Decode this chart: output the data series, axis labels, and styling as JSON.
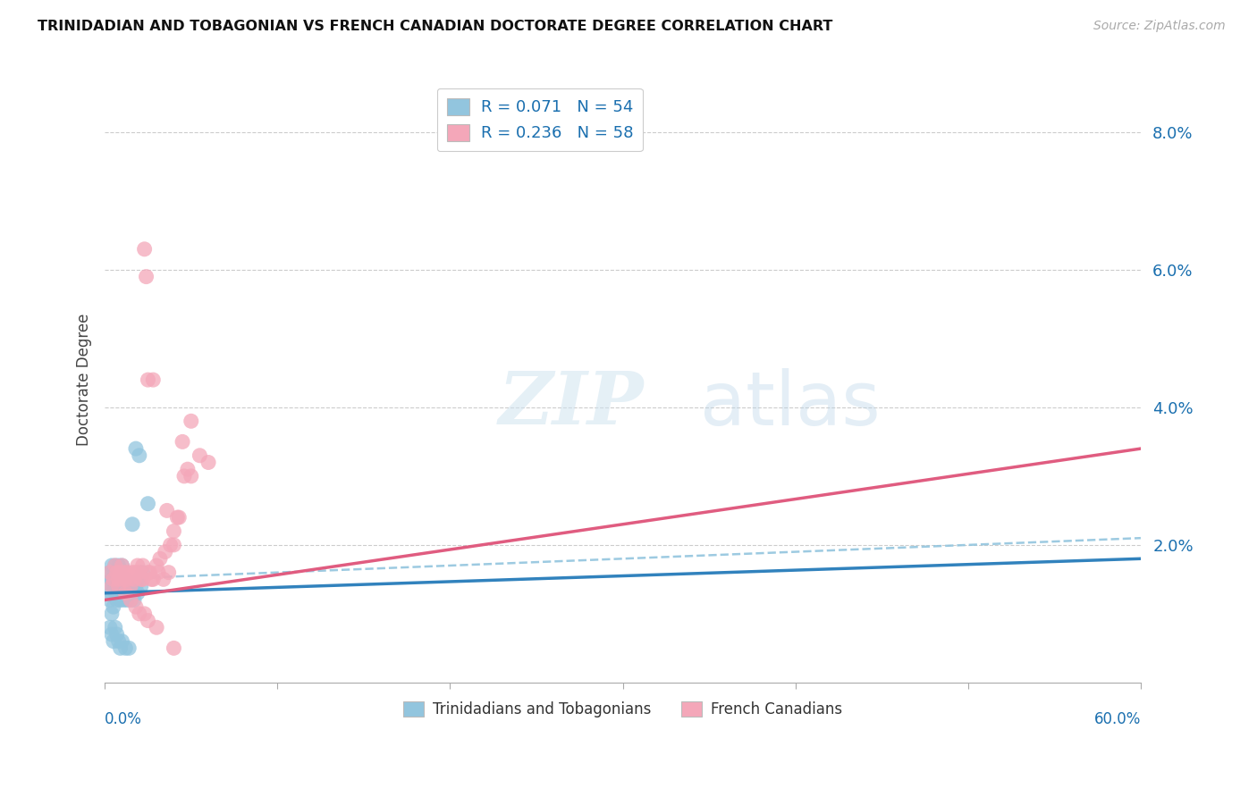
{
  "title": "TRINIDADIAN AND TOBAGONIAN VS FRENCH CANADIAN DOCTORATE DEGREE CORRELATION CHART",
  "source": "Source: ZipAtlas.com",
  "ylabel": "Doctorate Degree",
  "color_blue": "#92c5de",
  "color_pink": "#f4a7b9",
  "color_blue_line": "#3182bd",
  "color_pink_line": "#e05c80",
  "color_dashed": "#92c5de",
  "legend_label1": "Trinidadians and Tobagonians",
  "legend_label2": "French Canadians",
  "background_color": "#ffffff",
  "grid_color": "#cccccc",
  "title_color": "#111111",
  "tick_label_color": "#1a6faf",
  "xmin": 0.0,
  "xmax": 0.6,
  "ymin": 0.0,
  "ymax": 0.088,
  "yticks": [
    0.0,
    0.02,
    0.04,
    0.06,
    0.08
  ],
  "ytick_labels": [
    "",
    "2.0%",
    "4.0%",
    "6.0%",
    "8.0%"
  ],
  "xtick_positions": [
    0.0,
    0.1,
    0.2,
    0.3,
    0.4,
    0.5,
    0.6
  ],
  "blue_x": [
    0.002,
    0.003,
    0.003,
    0.004,
    0.004,
    0.004,
    0.004,
    0.005,
    0.005,
    0.005,
    0.006,
    0.006,
    0.006,
    0.007,
    0.007,
    0.007,
    0.008,
    0.008,
    0.008,
    0.009,
    0.009,
    0.01,
    0.01,
    0.01,
    0.011,
    0.011,
    0.012,
    0.012,
    0.013,
    0.013,
    0.014,
    0.015,
    0.015,
    0.016,
    0.017,
    0.018,
    0.019,
    0.02,
    0.021,
    0.022,
    0.003,
    0.004,
    0.005,
    0.006,
    0.007,
    0.008,
    0.009,
    0.01,
    0.012,
    0.014,
    0.016,
    0.018,
    0.02,
    0.025
  ],
  "blue_y": [
    0.014,
    0.012,
    0.016,
    0.013,
    0.015,
    0.017,
    0.01,
    0.014,
    0.016,
    0.011,
    0.013,
    0.015,
    0.017,
    0.012,
    0.014,
    0.016,
    0.013,
    0.015,
    0.017,
    0.012,
    0.014,
    0.013,
    0.015,
    0.017,
    0.012,
    0.014,
    0.013,
    0.015,
    0.012,
    0.014,
    0.013,
    0.012,
    0.014,
    0.013,
    0.012,
    0.014,
    0.013,
    0.015,
    0.014,
    0.016,
    0.008,
    0.007,
    0.006,
    0.008,
    0.007,
    0.006,
    0.005,
    0.006,
    0.005,
    0.005,
    0.023,
    0.034,
    0.033,
    0.026
  ],
  "pink_x": [
    0.003,
    0.004,
    0.005,
    0.006,
    0.007,
    0.008,
    0.008,
    0.009,
    0.01,
    0.01,
    0.011,
    0.012,
    0.013,
    0.014,
    0.015,
    0.016,
    0.017,
    0.018,
    0.019,
    0.02,
    0.021,
    0.022,
    0.023,
    0.024,
    0.025,
    0.026,
    0.027,
    0.028,
    0.03,
    0.032,
    0.035,
    0.038,
    0.04,
    0.042,
    0.045,
    0.048,
    0.05,
    0.055,
    0.06,
    0.036,
    0.022,
    0.025,
    0.028,
    0.031,
    0.034,
    0.037,
    0.04,
    0.043,
    0.046,
    0.05,
    0.012,
    0.015,
    0.018,
    0.02,
    0.023,
    0.025,
    0.03,
    0.04
  ],
  "pink_y": [
    0.016,
    0.014,
    0.015,
    0.017,
    0.016,
    0.015,
    0.014,
    0.016,
    0.015,
    0.017,
    0.016,
    0.015,
    0.016,
    0.015,
    0.014,
    0.016,
    0.015,
    0.016,
    0.017,
    0.016,
    0.015,
    0.017,
    0.063,
    0.059,
    0.044,
    0.016,
    0.015,
    0.044,
    0.017,
    0.018,
    0.019,
    0.02,
    0.022,
    0.024,
    0.035,
    0.031,
    0.03,
    0.033,
    0.032,
    0.025,
    0.015,
    0.016,
    0.015,
    0.016,
    0.015,
    0.016,
    0.02,
    0.024,
    0.03,
    0.038,
    0.013,
    0.012,
    0.011,
    0.01,
    0.01,
    0.009,
    0.008,
    0.005
  ],
  "blue_line_x0": 0.0,
  "blue_line_y0": 0.013,
  "blue_line_x1": 0.6,
  "blue_line_y1": 0.018,
  "pink_line_x0": 0.0,
  "pink_line_y0": 0.012,
  "pink_line_x1": 0.6,
  "pink_line_y1": 0.034,
  "dashed_line_x0": 0.0,
  "dashed_line_y0": 0.015,
  "dashed_line_x1": 0.6,
  "dashed_line_y1": 0.021
}
